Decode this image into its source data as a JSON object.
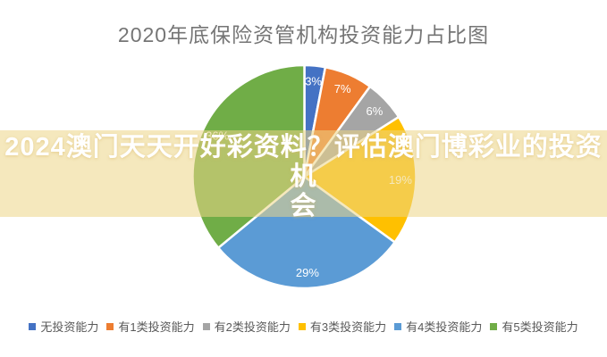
{
  "chart_data": {
    "type": "pie",
    "title": "2020年底保险资管机构投资能力占比图",
    "categories": [
      "无投资能力",
      "有1类投资能力",
      "有2类投资能力",
      "有3类投资能力",
      "有4类投资能力",
      "有5类投资能力"
    ],
    "values": [
      3,
      7,
      6,
      19,
      29,
      36
    ],
    "labels": [
      "3%",
      "7%",
      "6%",
      "19%",
      "29%",
      "36%"
    ],
    "colors": [
      "#4472C4",
      "#ED7D31",
      "#A5A5A5",
      "#FFC000",
      "#5B9BD5",
      "#70AD47"
    ],
    "start_angle_deg": 0,
    "direction": "clockwise",
    "label_radius_ratio": 0.86,
    "legend_position": "bottom",
    "title_color": "#757575",
    "slice_label_color": "#ffffff",
    "legend_text_color": "#595959"
  },
  "banner": {
    "lines": [
      "2024澳门天天开好彩资料？评估澳门博彩业的投资机",
      "会"
    ],
    "background_color": "rgba(237,213,135,0.55)",
    "text_color": "#ffffff"
  }
}
